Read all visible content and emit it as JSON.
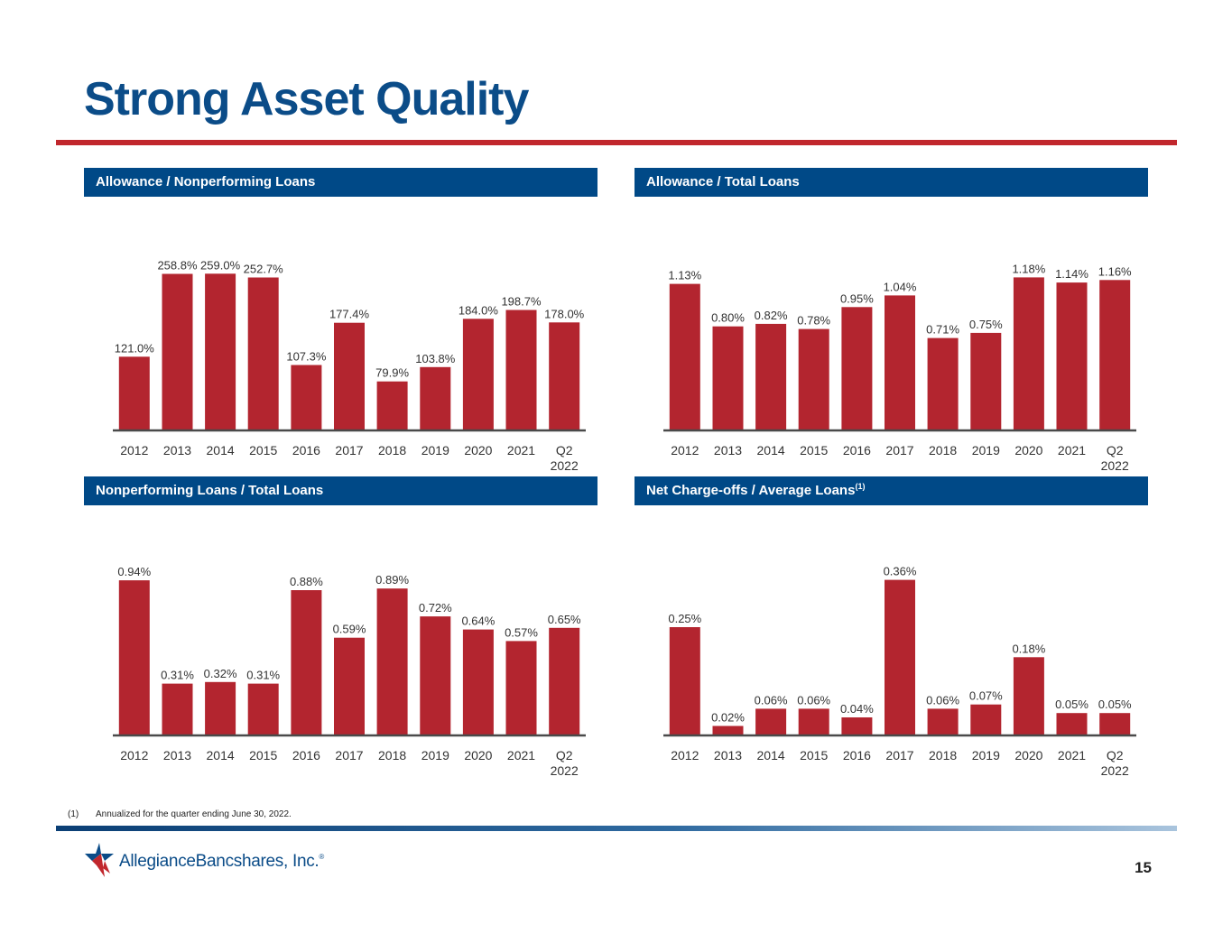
{
  "page": {
    "title": "Strong Asset Quality",
    "page_number": "15",
    "footnote": {
      "marker": "(1)",
      "text": "Annualized for the quarter ending June 30, 2022."
    },
    "logo": {
      "name_part1": "Allegiance",
      "name_part2": "Bancshares, Inc.",
      "reg": "®"
    }
  },
  "colors": {
    "bar": "#b3252f",
    "header_bg": "#004987",
    "title": "#0b4c88",
    "accent_rule": "#c1272d"
  },
  "chart_data": [
    {
      "type": "bar",
      "title": "Allowance / Nonperforming Loans",
      "title_sup": "",
      "categories": [
        "2012",
        "2013",
        "2014",
        "2015",
        "2016",
        "2017",
        "2018",
        "2019",
        "2020",
        "2021",
        "Q2 2022"
      ],
      "values": [
        121.0,
        258.8,
        259.0,
        252.7,
        107.3,
        177.4,
        79.9,
        103.8,
        184.0,
        198.7,
        178.0
      ],
      "labels": [
        "121.0%",
        "258.8%",
        "259.0%",
        "252.7%",
        "107.3%",
        "177.4%",
        "79.9%",
        "103.8%",
        "184.0%",
        "198.7%",
        "178.0%"
      ],
      "ylim": [
        0,
        300
      ],
      "xlabel": "",
      "ylabel": "",
      "legend": "none",
      "grid": false
    },
    {
      "type": "bar",
      "title": "Allowance / Total Loans",
      "title_sup": "",
      "categories": [
        "2012",
        "2013",
        "2014",
        "2015",
        "2016",
        "2017",
        "2018",
        "2019",
        "2020",
        "2021",
        "Q2 2022"
      ],
      "values": [
        1.13,
        0.8,
        0.82,
        0.78,
        0.95,
        1.04,
        0.71,
        0.75,
        1.18,
        1.14,
        1.16
      ],
      "labels": [
        "1.13%",
        "0.80%",
        "0.82%",
        "0.78%",
        "0.95%",
        "1.04%",
        "0.71%",
        "0.75%",
        "1.18%",
        "1.14%",
        "1.16%"
      ],
      "ylim": [
        0,
        1.4
      ],
      "xlabel": "",
      "ylabel": "",
      "legend": "none",
      "grid": false
    },
    {
      "type": "bar",
      "title": "Nonperforming Loans / Total Loans",
      "title_sup": "",
      "categories": [
        "2012",
        "2013",
        "2014",
        "2015",
        "2016",
        "2017",
        "2018",
        "2019",
        "2020",
        "2021",
        "Q2 2022"
      ],
      "values": [
        0.94,
        0.31,
        0.32,
        0.31,
        0.88,
        0.59,
        0.89,
        0.72,
        0.64,
        0.57,
        0.65
      ],
      "labels": [
        "0.94%",
        "0.31%",
        "0.32%",
        "0.31%",
        "0.88%",
        "0.59%",
        "0.89%",
        "0.72%",
        "0.64%",
        "0.57%",
        "0.65%"
      ],
      "ylim": [
        0,
        1.1
      ],
      "xlabel": "",
      "ylabel": "",
      "legend": "none",
      "grid": false
    },
    {
      "type": "bar",
      "title": "Net Charge-offs / Average Loans",
      "title_sup": "(1)",
      "categories": [
        "2012",
        "2013",
        "2014",
        "2015",
        "2016",
        "2017",
        "2018",
        "2019",
        "2020",
        "2021",
        "Q2 2022"
      ],
      "values": [
        0.25,
        0.02,
        0.06,
        0.06,
        0.04,
        0.36,
        0.06,
        0.07,
        0.18,
        0.05,
        0.05
      ],
      "labels": [
        "0.25%",
        "0.02%",
        "0.06%",
        "0.06%",
        "0.04%",
        "0.36%",
        "0.06%",
        "0.07%",
        "0.18%",
        "0.05%",
        "0.05%"
      ],
      "ylim": [
        0,
        0.42
      ],
      "xlabel": "",
      "ylabel": "",
      "legend": "none",
      "grid": false
    }
  ]
}
